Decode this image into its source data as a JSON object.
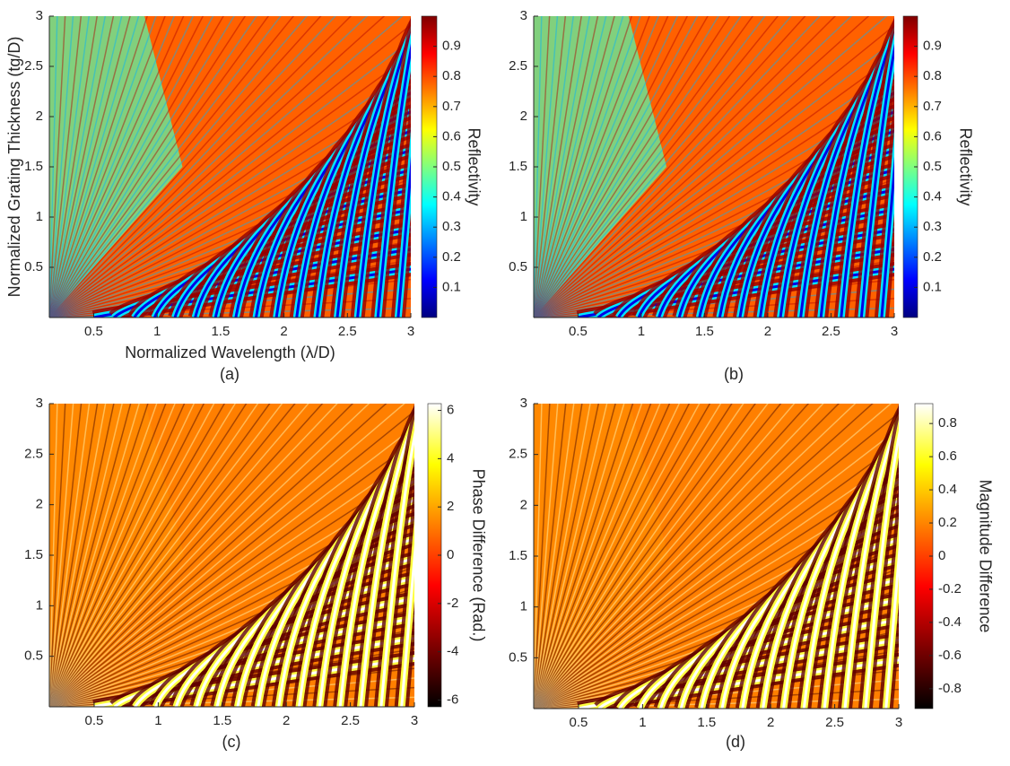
{
  "chart_data": [
    {
      "type": "heatmap",
      "panel_label": "(a)",
      "xlabel": "Normalized Wavelength (λ/D)",
      "ylabel": "Normalized Grating Thickness (tg/D)",
      "xlim": [
        0.15,
        3
      ],
      "ylim": [
        0,
        3
      ],
      "xticks": [
        0.5,
        1,
        1.5,
        2,
        2.5,
        3
      ],
      "yticks": [
        0.5,
        1,
        1.5,
        2,
        2.5,
        3
      ],
      "colormap": [
        "#00007f",
        "#0000ff",
        "#007fff",
        "#00ffff",
        "#7fff7f",
        "#ffff00",
        "#ff7f00",
        "#ff0000",
        "#7f0000"
      ],
      "colorbar": {
        "label": "Reflectivity",
        "lim": [
          0,
          1
        ],
        "ticks": [
          0.1,
          0.2,
          0.3,
          0.4,
          0.5,
          0.6,
          0.7,
          0.8,
          0.9
        ]
      }
    },
    {
      "type": "heatmap",
      "panel_label": "(b)",
      "xlim": [
        0.15,
        3
      ],
      "ylim": [
        0,
        3
      ],
      "xticks": [
        0.5,
        1,
        1.5,
        2,
        2.5,
        3
      ],
      "yticks": [
        0.5,
        1,
        1.5,
        2,
        2.5,
        3
      ],
      "colormap": [
        "#00007f",
        "#0000ff",
        "#007fff",
        "#00ffff",
        "#7fff7f",
        "#ffff00",
        "#ff7f00",
        "#ff0000",
        "#7f0000"
      ],
      "colorbar": {
        "label": "Reflectivity",
        "lim": [
          0,
          1
        ],
        "ticks": [
          0.1,
          0.2,
          0.3,
          0.4,
          0.5,
          0.6,
          0.7,
          0.8,
          0.9
        ]
      }
    },
    {
      "type": "heatmap",
      "panel_label": "(c)",
      "xlim": [
        0.15,
        3
      ],
      "ylim": [
        0,
        3
      ],
      "xticks": [
        0.5,
        1,
        1.5,
        2,
        2.5,
        3
      ],
      "yticks": [
        0.5,
        1,
        1.5,
        2,
        2.5,
        3
      ],
      "colormap": [
        "#000000",
        "#7f0000",
        "#ff0000",
        "#ff7f00",
        "#ffff00",
        "#ffffff"
      ],
      "colorbar": {
        "label": "Phase Difference (Rad.)",
        "lim": [
          -6.28,
          6.28
        ],
        "ticks": [
          -6,
          -4,
          -2,
          0,
          2,
          4,
          6
        ]
      }
    },
    {
      "type": "heatmap",
      "panel_label": "(d)",
      "xlim": [
        0.15,
        3
      ],
      "ylim": [
        0,
        3
      ],
      "xticks": [
        0.5,
        1,
        1.5,
        2,
        2.5,
        3
      ],
      "yticks": [
        0.5,
        1,
        1.5,
        2,
        2.5,
        3
      ],
      "colormap": [
        "#000000",
        "#7f0000",
        "#ff0000",
        "#ff7f00",
        "#ffff00",
        "#ffffff"
      ],
      "colorbar": {
        "label": "Magnitude Difference",
        "lim": [
          -0.92,
          0.92
        ],
        "ticks": [
          -0.8,
          -0.6,
          -0.4,
          -0.2,
          0,
          0.2,
          0.4,
          0.6,
          0.8
        ]
      }
    }
  ]
}
